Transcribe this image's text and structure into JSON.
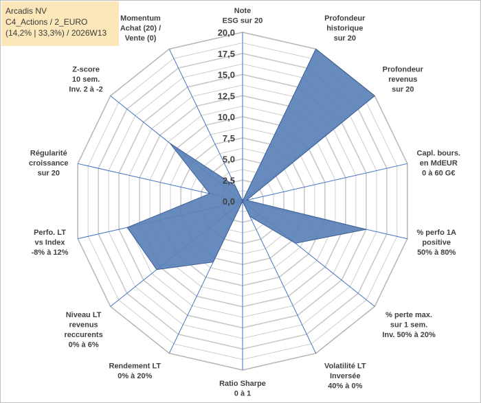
{
  "header": {
    "line1": "Arcadis NV",
    "line2": "C4_Actions / 2_EURO",
    "line3": "(14,2% | 33,3%) / 2026W13"
  },
  "colors": {
    "fill": "#5b82b8",
    "stroke": "#3c5f94",
    "axis": "#4472c4",
    "grid": "#c8c8c8",
    "titleBg": "#fbe7b9"
  },
  "chart_data": {
    "type": "radar",
    "title": "Arcadis NV",
    "rlim": [
      0,
      20
    ],
    "ticks": [
      "0,0",
      "2,5",
      "5,0",
      "7,5",
      "10,0",
      "12,5",
      "15,0",
      "17,5",
      "20,0"
    ],
    "tick_values": [
      0,
      2.5,
      5,
      7.5,
      10,
      12.5,
      15,
      17.5,
      20
    ],
    "axes": [
      {
        "label": [
          "Note",
          "ESG sur 20"
        ],
        "value": 0
      },
      {
        "label": [
          "Profondeur",
          "historique",
          "sur 20"
        ],
        "value": 20
      },
      {
        "label": [
          "Profondeur",
          "revenus",
          "sur 20"
        ],
        "value": 20
      },
      {
        "label": [
          "Capl. bours.",
          "en MdEUR",
          "0 à 60 G€"
        ],
        "value": 0.5
      },
      {
        "label": [
          "% perfo 1A",
          "positive",
          "50% à 80%"
        ],
        "value": 15
      },
      {
        "label": [
          "% perte max.",
          "sur 1 sem.",
          "Inv. 50% à 20%"
        ],
        "value": 8
      },
      {
        "label": [
          "Volatilité LT",
          "Inversée",
          "40% à 0%"
        ],
        "value": 2
      },
      {
        "label": [
          "Ratio Sharpe",
          "0 à 1"
        ],
        "value": 0
      },
      {
        "label": [
          "Rendement LT",
          "0% à 20%"
        ],
        "value": 8
      },
      {
        "label": [
          "Niveau LT",
          "revenus",
          "reccurents",
          "0% à 6%"
        ],
        "value": 13
      },
      {
        "label": [
          "Perfo. LT",
          "vs Index",
          "-8% à 12%"
        ],
        "value": 14
      },
      {
        "label": [
          "Régularité",
          "croissance",
          "sur 20"
        ],
        "value": 4
      },
      {
        "label": [
          "Z-score",
          "10 sem.",
          "Inv. 2 à -2"
        ],
        "value": 11
      },
      {
        "label": [
          "Momentum",
          "Achat (20) /",
          "Vente (0)"
        ],
        "value": 2
      }
    ]
  }
}
